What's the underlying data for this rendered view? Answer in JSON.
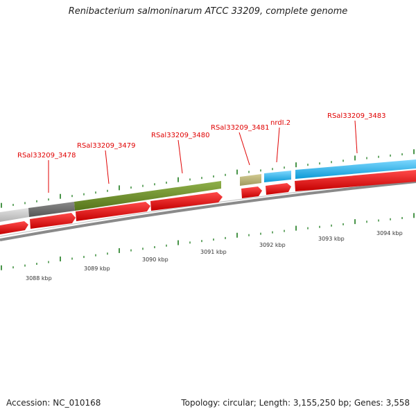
{
  "title": "Renibacterium salmoninarum ATCC 33209, complete genome",
  "footer": {
    "accession": "Accession: NC_010168",
    "stats": "Topology: circular; Length: 3,155,250 bp; Genes: 3,558"
  },
  "gene_labels": [
    "RSal33209_3478",
    "RSal33209_3479",
    "RSal33209_3480",
    "RSal33209_3481",
    "nrdI.2",
    "RSal33209_3483"
  ],
  "kbp_labels": [
    "3088 kbp",
    "3089 kbp",
    "3090 kbp",
    "3091 kbp",
    "3092 kbp",
    "3093 kbp",
    "3094 kbp"
  ],
  "colors": {
    "gene_label": "#e00000",
    "cds_arrow": "#ee0000",
    "tick": "#1a7a1a",
    "backbone": "#888888",
    "gene_gray_light": "#c8c8c8",
    "gene_gray_dark": "#6a6a6a",
    "gene_green": "#6b8e23",
    "gene_khaki": "#b5ad70",
    "gene_blue": "#1ab4ee"
  }
}
